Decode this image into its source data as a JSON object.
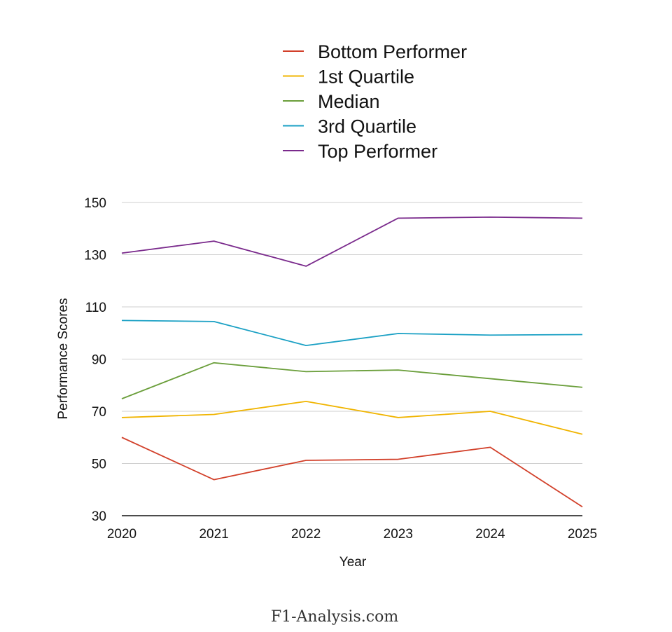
{
  "chart_data": {
    "type": "line",
    "title": "",
    "xlabel": "Year",
    "ylabel": "Performance Scores",
    "x": [
      "2020",
      "2021",
      "2022",
      "2023",
      "2024",
      "2025"
    ],
    "ylim": [
      30,
      150
    ],
    "yticks": [
      30,
      50,
      70,
      90,
      110,
      130,
      150
    ],
    "grid": true,
    "legend_position": "top",
    "series": [
      {
        "name": "Bottom Performer",
        "color": "#d2402a",
        "values": [
          60,
          43.8,
          51.2,
          51.6,
          56.2,
          33.4
        ]
      },
      {
        "name": "1st Quartile",
        "color": "#f0b400",
        "values": [
          67.6,
          68.8,
          73.8,
          67.6,
          70,
          61.2
        ]
      },
      {
        "name": "Median",
        "color": "#6a9e3a",
        "values": [
          74.8,
          88.6,
          85.2,
          85.8,
          82.5,
          79.2
        ]
      },
      {
        "name": "3rd Quartile",
        "color": "#1aa0c4",
        "values": [
          104.8,
          104.4,
          95.2,
          99.8,
          99.2,
          99.4
        ]
      },
      {
        "name": "Top Performer",
        "color": "#7a2a8c",
        "values": [
          130.6,
          135.2,
          125.6,
          144,
          144.4,
          144
        ]
      }
    ]
  },
  "footer": {
    "credit": "F1-Analysis.com"
  }
}
